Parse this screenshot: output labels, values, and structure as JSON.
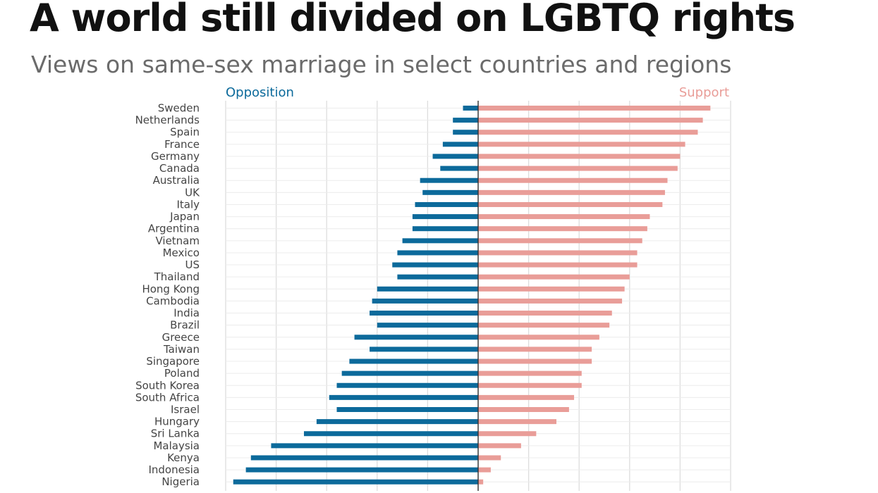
{
  "title": "A world still divided on LGBTQ rights",
  "subtitle": "Views on same-sex marriage in select countries and regions",
  "colors": {
    "opposition": "#0c6a9b",
    "support": "#e99d98",
    "grid": "#dddddd",
    "axis": "#333333"
  },
  "chart_data": {
    "type": "bar",
    "orientation": "diverging-horizontal",
    "categories": [
      "Sweden",
      "Netherlands",
      "Spain",
      "France",
      "Germany",
      "Canada",
      "Australia",
      "UK",
      "Italy",
      "Japan",
      "Argentina",
      "Vietnam",
      "Mexico",
      "US",
      "Thailand",
      "Hong Kong",
      "Cambodia",
      "India",
      "Brazil",
      "Greece",
      "Taiwan",
      "Singapore",
      "Poland",
      "South Korea",
      "South Africa",
      "Israel",
      "Hungary",
      "Sri Lanka",
      "Malaysia",
      "Kenya",
      "Indonesia",
      "Nigeria"
    ],
    "series": [
      {
        "name": "Opposition",
        "values": [
          6,
          10,
          10,
          14,
          18,
          15,
          23,
          22,
          25,
          26,
          26,
          30,
          32,
          34,
          32,
          40,
          42,
          43,
          40,
          49,
          43,
          51,
          54,
          56,
          59,
          56,
          64,
          69,
          82,
          90,
          92,
          97
        ]
      },
      {
        "name": "Support",
        "values": [
          92,
          89,
          87,
          82,
          80,
          79,
          75,
          74,
          73,
          68,
          67,
          65,
          63,
          63,
          60,
          58,
          57,
          53,
          52,
          48,
          45,
          45,
          41,
          41,
          38,
          36,
          31,
          23,
          17,
          9,
          5,
          2
        ]
      }
    ],
    "xlim": [
      -100,
      100
    ],
    "grid": true
  }
}
